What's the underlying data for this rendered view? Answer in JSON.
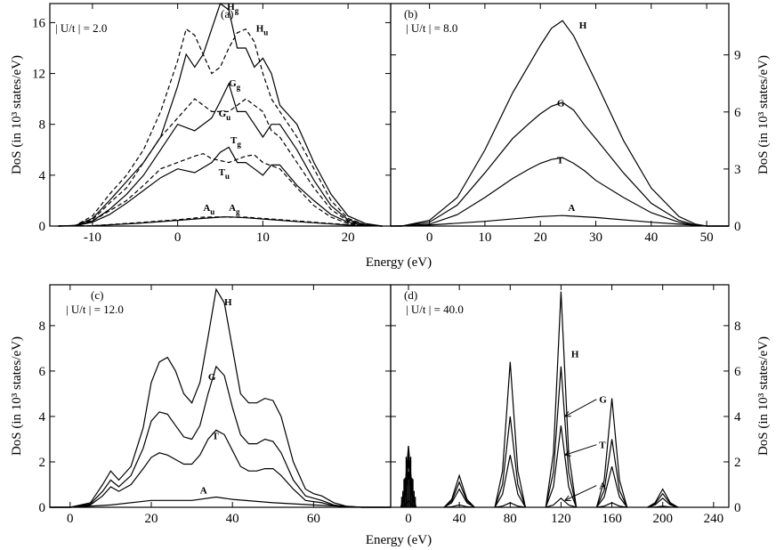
{
  "chart_data": [
    {
      "id": "a",
      "type": "line",
      "panel_label": "(a)",
      "annotation": "| U/t | = 2.0",
      "xlabel": "",
      "ylabel": "DoS (in 10³ states/eV)",
      "xlim": [
        -15,
        25
      ],
      "ylim": [
        0,
        17.5
      ],
      "xticks": [
        -10,
        0,
        10,
        20
      ],
      "yticks": [
        0,
        4,
        8,
        12,
        16
      ],
      "series": [
        {
          "name": "Hg",
          "style": "solid",
          "x": [
            -14,
            -12,
            -10,
            -8,
            -6,
            -4,
            -2,
            0,
            1,
            2,
            3,
            4,
            5,
            6,
            7,
            8,
            9,
            10,
            11,
            12,
            14,
            16,
            18,
            20,
            22,
            24
          ],
          "y": [
            0,
            0.05,
            0.6,
            2,
            3.5,
            5,
            7,
            11,
            13.5,
            12.5,
            13.5,
            15.5,
            17.5,
            17,
            14,
            14,
            12.5,
            13.2,
            12,
            9.5,
            8,
            5,
            2.5,
            0.8,
            0.2,
            0
          ]
        },
        {
          "name": "Hu",
          "style": "dashed",
          "x": [
            -14,
            -12,
            -10,
            -8,
            -6,
            -4,
            -2,
            0,
            1,
            2,
            3,
            4,
            5,
            6,
            7,
            8,
            9,
            10,
            11,
            12,
            14,
            16,
            18,
            20,
            22,
            24
          ],
          "y": [
            0,
            0.05,
            0.8,
            2.5,
            4,
            6,
            9,
            13,
            15.5,
            15,
            13.5,
            12,
            12.5,
            14,
            15.2,
            15.5,
            14.5,
            12,
            10,
            9,
            7,
            4.5,
            2,
            0.6,
            0.1,
            0
          ]
        },
        {
          "name": "Gg",
          "style": "solid",
          "x": [
            -14,
            -12,
            -10,
            -8,
            -6,
            -4,
            -2,
            0,
            2,
            4,
            5,
            6,
            7,
            8,
            9,
            10,
            11,
            12,
            14,
            16,
            18,
            20,
            22,
            24
          ],
          "y": [
            0,
            0.04,
            0.4,
            1.3,
            2.5,
            4,
            6,
            8,
            7.5,
            8.5,
            9.8,
            11.2,
            9,
            9,
            8,
            7,
            8,
            8,
            6,
            3.6,
            1.6,
            0.5,
            0.1,
            0
          ]
        },
        {
          "name": "Gu",
          "style": "dashed",
          "x": [
            -14,
            -12,
            -10,
            -8,
            -6,
            -4,
            -2,
            0,
            2,
            4,
            6,
            8,
            9,
            10,
            11,
            12,
            14,
            16,
            18,
            20,
            22,
            24
          ],
          "y": [
            0,
            0.04,
            0.5,
            1.8,
            3,
            5,
            7,
            8.5,
            10,
            9,
            9,
            10,
            9.5,
            9,
            7.5,
            7,
            5,
            3,
            1.3,
            0.4,
            0.1,
            0
          ]
        },
        {
          "name": "Tg",
          "style": "solid",
          "x": [
            -14,
            -12,
            -10,
            -8,
            -6,
            -4,
            -2,
            0,
            2,
            4,
            5,
            6,
            7,
            8,
            9,
            10,
            11,
            12,
            14,
            16,
            18,
            20,
            22,
            24
          ],
          "y": [
            0,
            0.03,
            0.3,
            0.9,
            1.8,
            2.8,
            3.8,
            4.5,
            4.2,
            5,
            5.8,
            6.2,
            5,
            5,
            4.5,
            4,
            4.8,
            4.8,
            3.2,
            2,
            0.9,
            0.3,
            0.05,
            0
          ]
        },
        {
          "name": "Tu",
          "style": "dashed",
          "x": [
            -14,
            -12,
            -10,
            -8,
            -6,
            -4,
            -2,
            0,
            2,
            3,
            4,
            6,
            8,
            9,
            10,
            12,
            14,
            16,
            18,
            20,
            22,
            24
          ],
          "y": [
            0,
            0.03,
            0.4,
            1.2,
            2,
            3.2,
            4.5,
            5,
            5.5,
            5.7,
            5.3,
            5,
            5.5,
            5.6,
            5,
            4.5,
            3,
            1.6,
            0.7,
            0.2,
            0.05,
            0
          ]
        },
        {
          "name": "Ag",
          "style": "solid",
          "x": [
            -14,
            -10,
            -5,
            0,
            3,
            5,
            6,
            8,
            10,
            15,
            20,
            24
          ],
          "y": [
            0,
            0.02,
            0.2,
            0.45,
            0.6,
            0.7,
            0.72,
            0.65,
            0.55,
            0.3,
            0.08,
            0
          ]
        },
        {
          "name": "Au",
          "style": "dashed",
          "x": [
            -14,
            -10,
            -5,
            0,
            3,
            5,
            6,
            8,
            10,
            15,
            20,
            24
          ],
          "y": [
            0,
            0.03,
            0.25,
            0.5,
            0.7,
            0.72,
            0.7,
            0.7,
            0.6,
            0.35,
            0.1,
            0
          ]
        }
      ],
      "curve_labels": [
        {
          "main": "H",
          "sub": "g",
          "x": 5.8,
          "y": 17.0
        },
        {
          "main": "H",
          "sub": "u",
          "x": 9.2,
          "y": 15.3
        },
        {
          "main": "G",
          "sub": "g",
          "x": 6.0,
          "y": 11.0
        },
        {
          "main": "G",
          "sub": "u",
          "x": 4.8,
          "y": 8.6
        },
        {
          "main": "T",
          "sub": "g",
          "x": 6.2,
          "y": 6.5
        },
        {
          "main": "T",
          "sub": "u",
          "x": 4.8,
          "y": 4.0
        },
        {
          "main": "A",
          "sub": "u",
          "x": 3.0,
          "y": 1.2
        },
        {
          "main": "A",
          "sub": "g",
          "x": 6.0,
          "y": 1.2
        }
      ]
    },
    {
      "id": "b",
      "type": "line",
      "panel_label": "(b)",
      "annotation": "| U/t | = 8.0",
      "xlabel": "",
      "ylabel": "DoS (in 10³ states/eV)",
      "xlim": [
        -7,
        54
      ],
      "ylim": [
        0,
        11.7
      ],
      "xticks": [
        0,
        10,
        20,
        30,
        40,
        50
      ],
      "yticks": [
        0,
        3,
        6,
        9
      ],
      "series": [
        {
          "name": "H",
          "style": "solid",
          "x": [
            -7,
            -5,
            0,
            5,
            10,
            15,
            18,
            20,
            22,
            24,
            26,
            28,
            30,
            35,
            40,
            45,
            48,
            50,
            54
          ],
          "y": [
            0,
            0,
            0.3,
            1.5,
            4,
            7,
            8.5,
            9.5,
            10.4,
            10.8,
            10,
            8.8,
            7.6,
            4.5,
            2,
            0.5,
            0.1,
            0,
            0
          ]
        },
        {
          "name": "G",
          "style": "solid",
          "x": [
            -7,
            -5,
            0,
            5,
            10,
            15,
            18,
            20,
            22,
            24,
            26,
            28,
            30,
            35,
            40,
            45,
            48,
            50,
            54
          ],
          "y": [
            0,
            0,
            0.2,
            1.1,
            2.8,
            4.6,
            5.4,
            5.9,
            6.3,
            6.5,
            6.1,
            5.3,
            4.6,
            2.8,
            1.2,
            0.3,
            0.05,
            0,
            0
          ]
        },
        {
          "name": "T",
          "style": "solid",
          "x": [
            -7,
            -5,
            0,
            5,
            10,
            15,
            18,
            20,
            22,
            24,
            26,
            28,
            30,
            35,
            40,
            45,
            48,
            50,
            54
          ],
          "y": [
            0,
            0,
            0.1,
            0.6,
            1.5,
            2.5,
            3,
            3.3,
            3.5,
            3.6,
            3.3,
            2.9,
            2.4,
            1.5,
            0.7,
            0.2,
            0.03,
            0,
            0
          ]
        },
        {
          "name": "A",
          "style": "solid",
          "x": [
            -7,
            0,
            10,
            20,
            24,
            30,
            40,
            50,
            54
          ],
          "y": [
            0,
            0.05,
            0.25,
            0.5,
            0.55,
            0.45,
            0.2,
            0,
            0
          ]
        }
      ],
      "curve_labels": [
        {
          "main": "H",
          "sub": "",
          "x": 27,
          "y": 10.4
        },
        {
          "main": "G",
          "sub": "",
          "x": 23,
          "y": 6.3
        },
        {
          "main": "T",
          "sub": "",
          "x": 23,
          "y": 3.3
        },
        {
          "main": "A",
          "sub": "",
          "x": 25,
          "y": 0.8
        }
      ]
    },
    {
      "id": "c",
      "type": "line",
      "panel_label": "(c)",
      "annotation": "| U/t | = 12.0",
      "xlabel": "Energy (eV)",
      "ylabel": "DoS (in 10³ states/eV)",
      "xlim": [
        -5,
        79
      ],
      "ylim": [
        0,
        9.8
      ],
      "xticks": [
        0,
        20,
        40,
        60
      ],
      "yticks": [
        0,
        2,
        4,
        6,
        8
      ],
      "series": [
        {
          "name": "H",
          "style": "solid",
          "x": [
            -5,
            0,
            5,
            8,
            10,
            12,
            15,
            18,
            20,
            22,
            24,
            26,
            28,
            30,
            32,
            34,
            36,
            38,
            40,
            42,
            44,
            46,
            48,
            50,
            52,
            55,
            58,
            60,
            62,
            65,
            68,
            72,
            79
          ],
          "y": [
            0,
            0,
            0.2,
            1,
            1.6,
            1.2,
            1.8,
            3.5,
            5.5,
            6.4,
            6.6,
            6,
            5,
            4.6,
            5.5,
            7.5,
            9.6,
            9,
            7,
            5,
            4.6,
            4.6,
            4.8,
            4.7,
            4,
            2,
            0.8,
            0.6,
            0.5,
            0.2,
            0.05,
            0,
            0
          ]
        },
        {
          "name": "G",
          "style": "solid",
          "x": [
            -5,
            0,
            5,
            8,
            10,
            12,
            15,
            18,
            20,
            22,
            24,
            26,
            28,
            30,
            32,
            34,
            36,
            38,
            40,
            42,
            44,
            46,
            48,
            50,
            52,
            55,
            58,
            60,
            62,
            65,
            68,
            72,
            79
          ],
          "y": [
            0,
            0,
            0.15,
            0.7,
            1.2,
            0.9,
            1.4,
            2.6,
            3.8,
            4.2,
            4.1,
            3.6,
            3.1,
            3,
            3.6,
            5,
            6.2,
            5.8,
            4.4,
            3.2,
            2.8,
            2.8,
            3,
            2.9,
            2.4,
            1.2,
            0.5,
            0.4,
            0.3,
            0.1,
            0.03,
            0,
            0
          ]
        },
        {
          "name": "T",
          "style": "solid",
          "x": [
            -5,
            0,
            5,
            8,
            10,
            12,
            15,
            18,
            20,
            22,
            24,
            26,
            28,
            30,
            32,
            34,
            36,
            38,
            40,
            42,
            44,
            46,
            48,
            50,
            52,
            55,
            58,
            60,
            62,
            65,
            68,
            72,
            79
          ],
          "y": [
            0,
            0,
            0.1,
            0.5,
            0.9,
            0.7,
            1,
            1.7,
            2.2,
            2.4,
            2.3,
            2.1,
            1.9,
            1.9,
            2.3,
            3,
            3.4,
            3.2,
            2.5,
            1.8,
            1.6,
            1.6,
            1.7,
            1.7,
            1.4,
            0.8,
            0.3,
            0.25,
            0.2,
            0.07,
            0.02,
            0,
            0
          ]
        },
        {
          "name": "A",
          "style": "solid",
          "x": [
            -5,
            0,
            10,
            20,
            30,
            36,
            40,
            50,
            60,
            72,
            79
          ],
          "y": [
            0,
            0,
            0.1,
            0.3,
            0.3,
            0.45,
            0.35,
            0.2,
            0.1,
            0,
            0
          ]
        }
      ],
      "curve_labels": [
        {
          "main": "H",
          "sub": "",
          "x": 38,
          "y": 8.9
        },
        {
          "main": "G",
          "sub": "",
          "x": 34,
          "y": 5.6
        },
        {
          "main": "T",
          "sub": "",
          "x": 35,
          "y": 3.0
        },
        {
          "main": "A",
          "sub": "",
          "x": 32,
          "y": 0.6
        }
      ]
    },
    {
      "id": "d",
      "type": "line",
      "panel_label": "(d)",
      "annotation": "| U/t | = 40.0",
      "xlabel": "Energy (eV)",
      "ylabel": "DoS (in 10³ states/eV)",
      "xlim": [
        -14,
        252
      ],
      "ylim": [
        0,
        9.8
      ],
      "xticks": [
        0,
        40,
        80,
        120,
        160,
        200,
        240
      ],
      "yticks": [
        0,
        2,
        4,
        6,
        8
      ],
      "peak_centers": [
        0,
        40,
        80,
        120,
        160,
        200
      ],
      "series": [
        {
          "name": "H",
          "style": "solid",
          "peak_heights": [
            2.7,
            1.4,
            6.4,
            9.5,
            4.8,
            0.8
          ]
        },
        {
          "name": "G",
          "style": "solid",
          "peak_heights": [
            2.2,
            1.1,
            4.0,
            6.2,
            3.0,
            0.6
          ]
        },
        {
          "name": "T",
          "style": "solid",
          "peak_heights": [
            1.6,
            0.8,
            2.3,
            3.6,
            1.8,
            0.4
          ]
        },
        {
          "name": "A",
          "style": "solid",
          "peak_heights": [
            0.3,
            0.1,
            0.2,
            0.4,
            0.2,
            0.05
          ]
        }
      ],
      "curve_labels": [
        {
          "main": "H",
          "sub": "",
          "x": 128,
          "y": 6.6,
          "arrow_to": null
        },
        {
          "main": "G",
          "sub": "",
          "x": 150,
          "y": 4.6,
          "arrow_to": [
            123,
            4.0
          ]
        },
        {
          "main": "T",
          "sub": "",
          "x": 150,
          "y": 2.6,
          "arrow_to": [
            123,
            2.3
          ]
        },
        {
          "main": "A",
          "sub": "",
          "x": 150,
          "y": 0.8,
          "arrow_to": [
            123,
            0.3
          ]
        }
      ]
    }
  ]
}
